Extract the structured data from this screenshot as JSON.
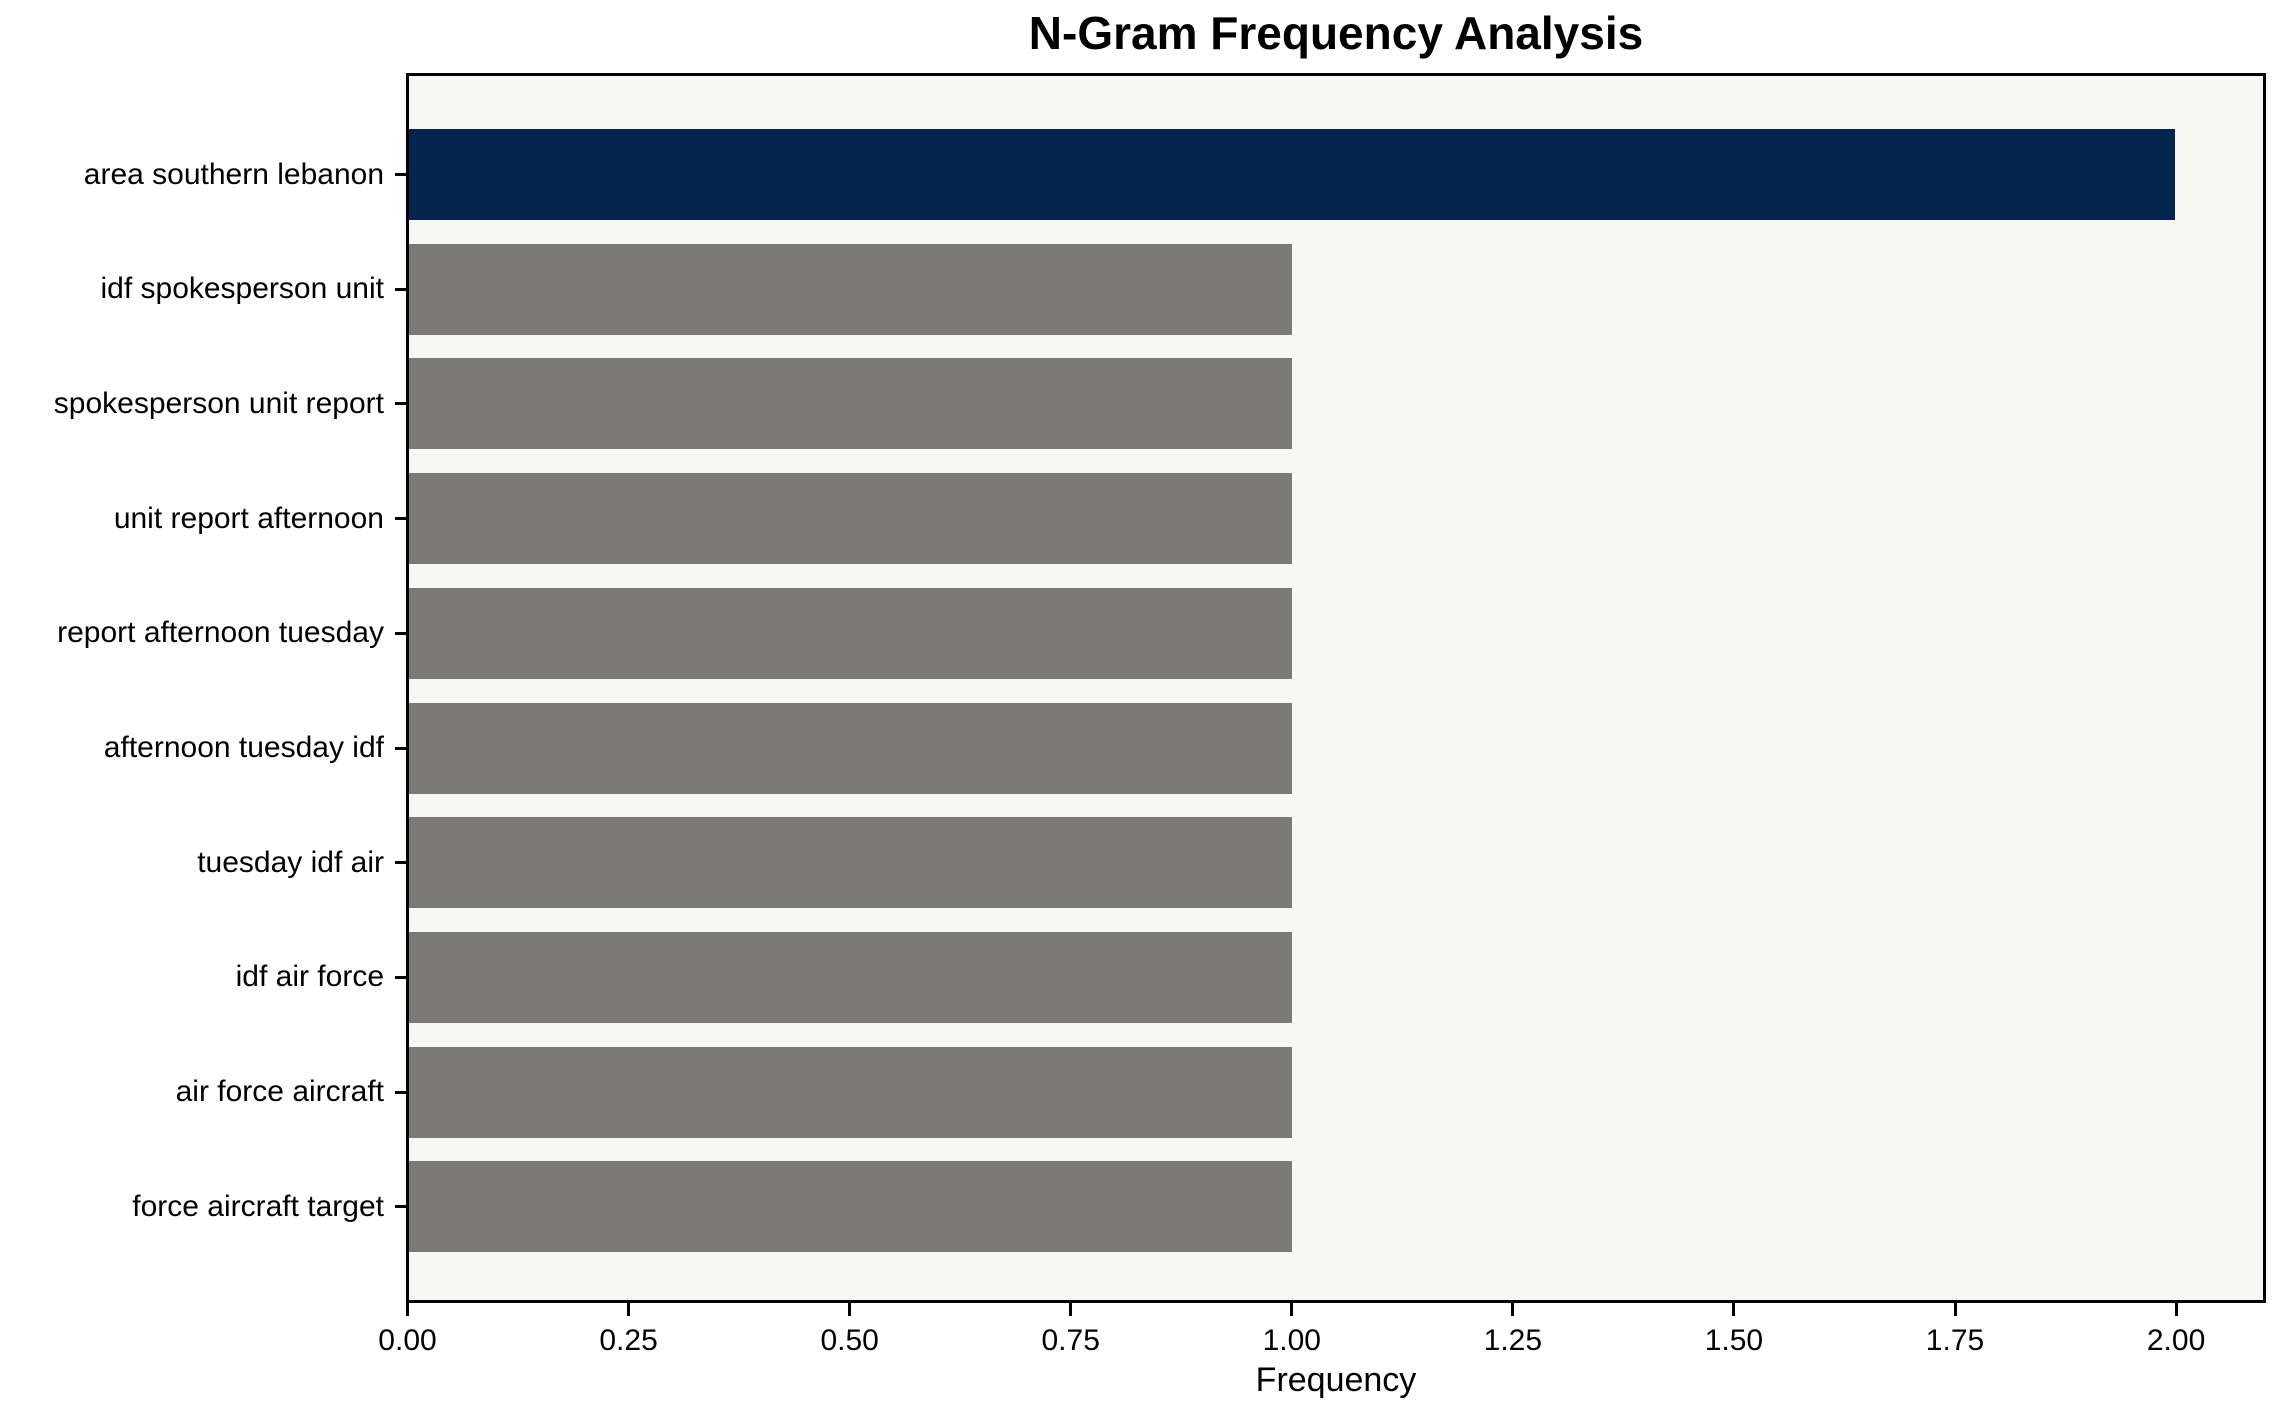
{
  "chart_data": {
    "type": "bar",
    "orientation": "horizontal",
    "title": "N-Gram Frequency Analysis",
    "xlabel": "Frequency",
    "ylabel": "",
    "categories": [
      "area southern lebanon",
      "idf spokesperson unit",
      "spokesperson unit report",
      "unit report afternoon",
      "report afternoon tuesday",
      "afternoon tuesday idf",
      "tuesday idf air",
      "idf air force",
      "air force aircraft",
      "force aircraft target"
    ],
    "values": [
      2,
      1,
      1,
      1,
      1,
      1,
      1,
      1,
      1,
      1
    ],
    "xlim": [
      0,
      2.1
    ],
    "xticks": [
      0.0,
      0.25,
      0.5,
      0.75,
      1.0,
      1.25,
      1.5,
      1.75,
      2.0
    ],
    "xtick_labels": [
      "0.00",
      "0.25",
      "0.50",
      "0.75",
      "1.00",
      "1.25",
      "1.50",
      "1.75",
      "2.00"
    ],
    "grid": false,
    "legend": null,
    "colors": {
      "highlight_bar": "#02244e",
      "default_bar": "#7b7a76",
      "plot_background": "#f7f7f5",
      "figure_background": "#ffffff",
      "axis": "#000000",
      "text": "#000000"
    }
  }
}
